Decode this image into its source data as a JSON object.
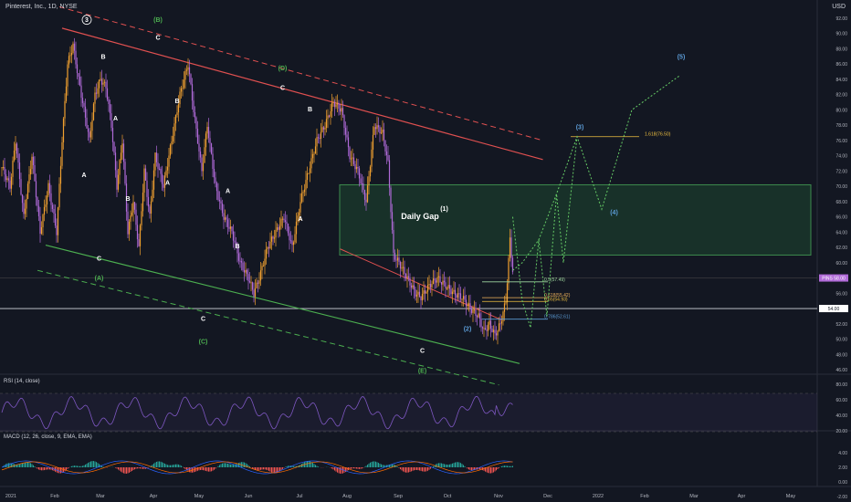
{
  "header": {
    "symbol": "Pinterest, Inc., 1D, NYSE",
    "currency": "USD"
  },
  "chart_data": {
    "type": "candlestick",
    "symbol": "PINS",
    "y_ticks": [
      46,
      48,
      50,
      52,
      54,
      56,
      58,
      60,
      62,
      64,
      66,
      68,
      70,
      72,
      74,
      76,
      78,
      80,
      82,
      84,
      86,
      88,
      90,
      92
    ],
    "y_tick_labels": [
      "46.00",
      "48.00",
      "50.00",
      "52.00",
      "54.00",
      "56.00",
      "58.00",
      "60.00",
      "62.00",
      "64.00",
      "66.00",
      "68.00",
      "70.00",
      "72.00",
      "74.00",
      "76.00",
      "78.00",
      "80.00",
      "82.00",
      "84.00",
      "86.00",
      "88.00",
      "90.00",
      "92.00"
    ],
    "x_ticks": [
      "2021",
      "Feb",
      "Mar",
      "Apr",
      "May",
      "Jun",
      "Jul",
      "Aug",
      "Sep",
      "Oct",
      "Nov",
      "Dec",
      "2022",
      "Feb",
      "Mar",
      "Apr",
      "May"
    ],
    "price_path": [
      [
        0,
        72.5
      ],
      [
        6,
        70
      ],
      [
        10,
        76
      ],
      [
        16,
        66
      ],
      [
        22,
        74
      ],
      [
        28,
        64
      ],
      [
        34,
        70
      ],
      [
        40,
        64
      ],
      [
        44,
        76
      ],
      [
        48,
        86
      ],
      [
        52,
        88.5
      ],
      [
        56,
        84
      ],
      [
        60,
        80
      ],
      [
        64,
        76
      ],
      [
        68,
        82
      ],
      [
        72,
        84
      ],
      [
        76,
        83
      ],
      [
        80,
        78
      ],
      [
        84,
        70
      ],
      [
        88,
        76
      ],
      [
        92,
        64
      ],
      [
        96,
        68
      ],
      [
        100,
        62
      ],
      [
        104,
        72
      ],
      [
        108,
        66
      ],
      [
        112,
        74
      ],
      [
        118,
        70
      ],
      [
        124,
        76
      ],
      [
        130,
        82
      ],
      [
        136,
        86
      ],
      [
        140,
        80
      ],
      [
        146,
        72
      ],
      [
        150,
        78
      ],
      [
        156,
        70
      ],
      [
        162,
        66
      ],
      [
        168,
        64
      ],
      [
        174,
        60
      ],
      [
        180,
        58
      ],
      [
        184,
        56
      ],
      [
        188,
        58
      ],
      [
        194,
        62
      ],
      [
        200,
        64
      ],
      [
        206,
        66
      ],
      [
        212,
        62
      ],
      [
        218,
        68
      ],
      [
        224,
        72
      ],
      [
        230,
        76
      ],
      [
        236,
        78
      ],
      [
        242,
        81
      ],
      [
        248,
        80
      ],
      [
        254,
        74
      ],
      [
        260,
        72
      ],
      [
        266,
        68
      ],
      [
        272,
        78
      ],
      [
        278,
        77
      ],
      [
        282,
        73
      ],
      [
        286,
        61
      ],
      [
        290,
        60
      ],
      [
        296,
        58
      ],
      [
        302,
        56
      ],
      [
        306,
        55.5
      ],
      [
        312,
        57
      ],
      [
        318,
        58
      ],
      [
        324,
        57
      ],
      [
        330,
        56
      ],
      [
        336,
        55.5
      ],
      [
        342,
        54
      ],
      [
        348,
        53
      ],
      [
        352,
        51
      ],
      [
        356,
        52
      ],
      [
        360,
        50.5
      ],
      [
        364,
        52
      ],
      [
        368,
        55
      ],
      [
        371,
        63
      ],
      [
        373,
        59
      ]
    ],
    "current_price": "58.00",
    "current_label": "PINS",
    "horizontal_level": "54.00",
    "daily_gap": {
      "label": "Daily Gap",
      "y_top": 70.2,
      "y_bottom": 61.0
    },
    "fib_levels": [
      {
        "label": "0.5(57.49)",
        "value": 57.49,
        "color": "#9fd69f"
      },
      {
        "label": "0.618(55.42)",
        "value": 55.42,
        "color": "#f0b35c"
      },
      {
        "label": "0.65(54.93)",
        "value": 54.93,
        "color": "#f0c040"
      },
      {
        "label": "0.786(52.61)",
        "value": 52.61,
        "color": "#5b9bd5"
      },
      {
        "label": "1.618(76.50)",
        "value": 76.5,
        "color": "#f0c040"
      }
    ],
    "wave_labels": [
      {
        "text": "3",
        "x": 62,
        "y": 91.5,
        "color": "#ffffff",
        "circle": true
      },
      {
        "text": "(B)",
        "x": 114,
        "y": 91.5,
        "color": "#4caf50"
      },
      {
        "text": "C",
        "x": 114,
        "y": 89.2,
        "color": "#ffffff"
      },
      {
        "text": "B",
        "x": 74,
        "y": 86.7,
        "color": "#ffffff"
      },
      {
        "text": "A",
        "x": 83,
        "y": 78.6,
        "color": "#ffffff"
      },
      {
        "text": "A",
        "x": 60,
        "y": 71.2,
        "color": "#ffffff"
      },
      {
        "text": "B",
        "x": 92,
        "y": 68.1,
        "color": "#ffffff"
      },
      {
        "text": "C",
        "x": 71,
        "y": 60.3,
        "color": "#ffffff"
      },
      {
        "text": "(A)",
        "x": 71,
        "y": 57.7,
        "color": "#4caf50"
      },
      {
        "text": "B",
        "x": 128,
        "y": 80.9,
        "color": "#ffffff"
      },
      {
        "text": "A",
        "x": 121,
        "y": 70.2,
        "color": "#ffffff"
      },
      {
        "text": "A",
        "x": 165,
        "y": 69.1,
        "color": "#ffffff"
      },
      {
        "text": "B",
        "x": 172,
        "y": 61.9,
        "color": "#ffffff"
      },
      {
        "text": "C",
        "x": 147,
        "y": 52.4,
        "color": "#ffffff"
      },
      {
        "text": "(C)",
        "x": 147,
        "y": 49.4,
        "color": "#4caf50"
      },
      {
        "text": "(D)",
        "x": 205,
        "y": 85.2,
        "color": "#4caf50"
      },
      {
        "text": "C",
        "x": 205,
        "y": 82.6,
        "color": "#ffffff"
      },
      {
        "text": "B",
        "x": 225,
        "y": 79.8,
        "color": "#ffffff"
      },
      {
        "text": "A",
        "x": 218,
        "y": 65.5,
        "color": "#ffffff"
      },
      {
        "text": "C",
        "x": 307,
        "y": 48.2,
        "color": "#ffffff"
      },
      {
        "text": "(E)",
        "x": 307,
        "y": 45.6,
        "color": "#4caf50"
      },
      {
        "text": "(1)",
        "x": 323,
        "y": 66.8,
        "color": "#ffffff"
      },
      {
        "text": "(2)",
        "x": 340,
        "y": 51.1,
        "color": "#5b9bd5"
      },
      {
        "text": "(3)",
        "x": 422,
        "y": 77.5,
        "color": "#5b9bd5"
      },
      {
        "text": "(4)",
        "x": 447,
        "y": 66.3,
        "color": "#5b9bd5"
      },
      {
        "text": "(5)",
        "x": 496,
        "y": 86.7,
        "color": "#5b9bd5"
      }
    ],
    "projection_path": [
      [
        373,
        59
      ],
      [
        380,
        60
      ],
      [
        392,
        63
      ],
      [
        405,
        69
      ],
      [
        420,
        76.5
      ],
      [
        438,
        67
      ],
      [
        460,
        80
      ],
      [
        495,
        84.5
      ]
    ],
    "panes": [
      {
        "name": "RSI (14, close)",
        "ticks": [
          "80.00",
          "60.00",
          "40.00",
          "20.00"
        ]
      },
      {
        "name": "MACD (12, 26, close, 9, EMA, EMA)",
        "ticks": [
          "4.00",
          "2.00",
          "0.00",
          "-2.00"
        ]
      }
    ]
  },
  "colors": {
    "bull": "#f0a030",
    "bear": "#b06ad8",
    "bg": "#131722",
    "gap": "#1e5e2e",
    "channel_up": "#e05050",
    "channel_low": "#4caf50",
    "projection": "#66cc66"
  }
}
